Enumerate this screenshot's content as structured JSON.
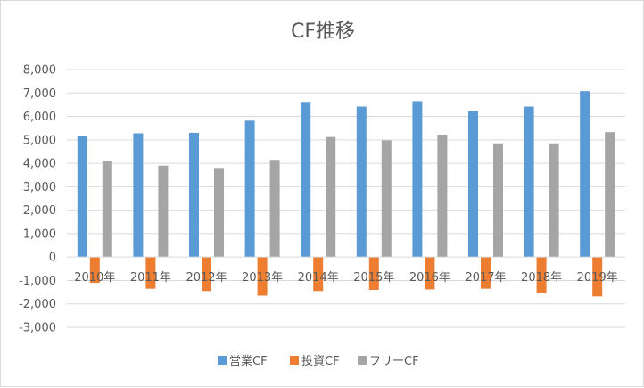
{
  "chart_data": {
    "type": "bar",
    "title": "CF推移",
    "xlabel": "",
    "ylabel": "",
    "categories": [
      "2010年",
      "2011年",
      "2012年",
      "2013年",
      "2014年",
      "2015年",
      "2016年",
      "2017年",
      "2018年",
      "2019年"
    ],
    "series": [
      {
        "name": "営業CF",
        "color": "#5b9bd5",
        "values": [
          5150,
          5280,
          5300,
          5820,
          6620,
          6420,
          6650,
          6230,
          6420,
          7080
        ]
      },
      {
        "name": "投資CF",
        "color": "#ed7d31",
        "values": [
          -1100,
          -1350,
          -1450,
          -1650,
          -1450,
          -1400,
          -1380,
          -1350,
          -1550,
          -1680
        ]
      },
      {
        "name": "フリーCF",
        "color": "#a5a5a5",
        "values": [
          4100,
          3900,
          3800,
          4150,
          5120,
          4980,
          5220,
          4850,
          4850,
          5330
        ]
      }
    ],
    "ylim": [
      -3000,
      8000
    ],
    "yticks": [
      -3000,
      -2000,
      -1000,
      0,
      1000,
      2000,
      3000,
      4000,
      5000,
      6000,
      7000,
      8000
    ],
    "ytick_labels": [
      "-3,000",
      "-2,000",
      "-1,000",
      "0",
      "1,000",
      "2,000",
      "3,000",
      "4,000",
      "5,000",
      "6,000",
      "7,000",
      "8,000"
    ],
    "grid": true,
    "legend": "bottom"
  }
}
